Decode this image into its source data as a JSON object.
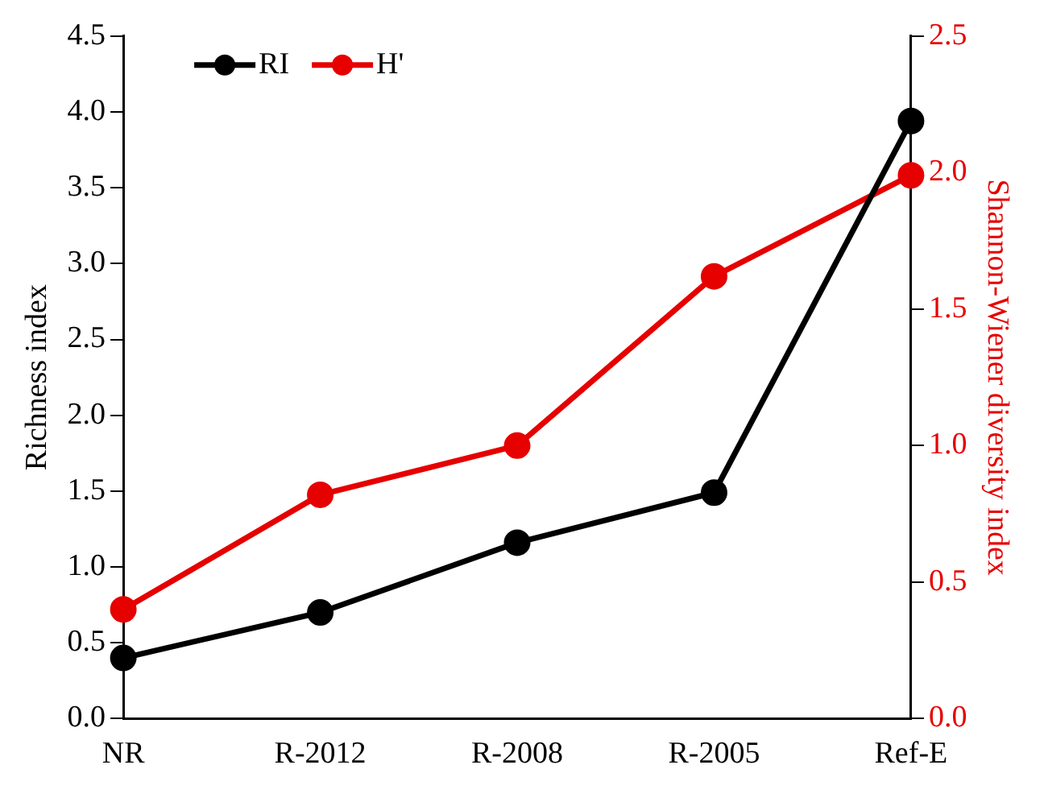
{
  "chart_data": {
    "type": "line",
    "categories": [
      "NR",
      "R-2012",
      "R-2008",
      "R-2005",
      "Ref-E"
    ],
    "ylabel": "Richness index",
    "y2label": "Shannon-Wiener diversity index",
    "series": [
      {
        "name": "RI",
        "color": "#000000",
        "values": [
          0.4,
          0.7,
          1.16,
          1.49,
          3.94
        ]
      },
      {
        "name": "H'",
        "color": "#e60000",
        "values": [
          0.4,
          0.82,
          1.0,
          1.62,
          1.99
        ],
        "axis": "y2"
      }
    ],
    "ylim": [
      0,
      4.5
    ],
    "yticks": [
      {
        "value": 0,
        "label": "0.0"
      },
      0.5,
      {
        "value": 1,
        "label": "1.0"
      },
      1.5,
      {
        "value": 2,
        "label": "2.0"
      },
      2.5,
      {
        "value": 3,
        "label": "3.0"
      },
      3.5,
      {
        "value": 4,
        "label": "4.0"
      },
      4.5
    ],
    "y2lim": [
      0,
      2.5
    ],
    "y2ticks": [
      {
        "value": 0,
        "label": "0.0"
      },
      0.5,
      {
        "value": 1,
        "label": "1.0"
      },
      1.5,
      {
        "value": 2,
        "label": "2.0"
      },
      2.5
    ],
    "grid": false,
    "legend": "top left",
    "marker": "circle",
    "line_style": "solid"
  }
}
